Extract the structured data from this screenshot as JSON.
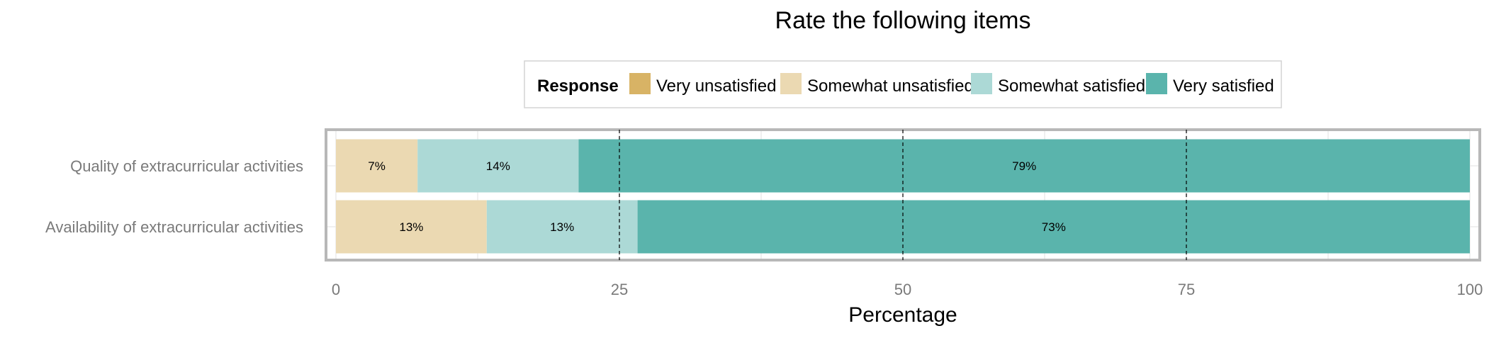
{
  "chart_data": {
    "type": "bar",
    "orientation": "horizontal",
    "stacked": true,
    "title": "Rate the following items",
    "xlabel": "Percentage",
    "ylabel": "",
    "xlim": [
      0,
      100
    ],
    "x_ticks": [
      0,
      25,
      50,
      75,
      100
    ],
    "x_tick_labels": [
      "0",
      "25",
      "50",
      "75",
      "100"
    ],
    "grid": true,
    "legend_position": "top",
    "legend_title": "Response",
    "categories": [
      "Quality of extracurricular activities",
      "Availability of extracurricular activities"
    ],
    "series": [
      {
        "name": "Very unsatisfied",
        "color": "#d8b365",
        "values": [
          0,
          0
        ],
        "labels": [
          "",
          ""
        ]
      },
      {
        "name": "Somewhat unsatisfied",
        "color": "#ebd9b2",
        "values": [
          7.2,
          13.3
        ],
        "labels": [
          "7%",
          "13%"
        ]
      },
      {
        "name": "Somewhat satisfied",
        "color": "#acd9d6",
        "values": [
          14.2,
          13.3
        ],
        "labels": [
          "14%",
          "13%"
        ]
      },
      {
        "name": "Very satisfied",
        "color": "#5ab4ac",
        "values": [
          78.6,
          73.4
        ],
        "labels": [
          "79%",
          "73%"
        ]
      }
    ]
  }
}
